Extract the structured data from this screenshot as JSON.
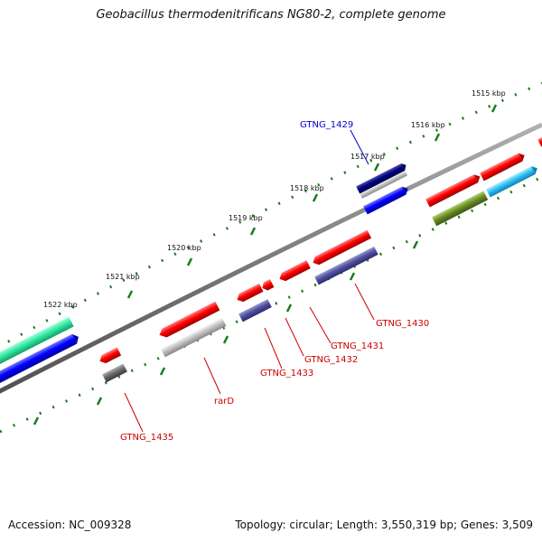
{
  "title": "Geobacillus thermodenitrificans NG80-2, complete genome",
  "footer": {
    "accession": "Accession: NC_009328",
    "summary": "Topology: circular; Length: 3,550,319 bp; Genes: 3,509"
  },
  "ruler": {
    "labels": [
      "1515 kbp",
      "1516 kbp",
      "1517 kbp",
      "1518 kbp",
      "1519 kbp",
      "1520 kbp",
      "1521 kbp",
      "1522 kbp"
    ]
  },
  "genes": [
    {
      "name": "GTNG_1429",
      "color": "#0000cc"
    },
    {
      "name": "GTNG_1430",
      "color": "#cc0000"
    },
    {
      "name": "GTNG_1431",
      "color": "#cc0000"
    },
    {
      "name": "GTNG_1432",
      "color": "#cc0000"
    },
    {
      "name": "GTNG_1433",
      "color": "#cc0000"
    },
    {
      "name": "rarD",
      "color": "#cc0000"
    },
    {
      "name": "GTNG_1435",
      "color": "#cc0000"
    }
  ],
  "colors": {
    "backbone": "#7a7a7a",
    "ticks": "#1a7a1a",
    "cds_red": "#e50000",
    "cds_blue": "#0000e0",
    "cds_navy": "#00006e",
    "cds_slate": "#4a4a9a",
    "cds_silver": "#b4b4b4",
    "cds_gray": "#666666",
    "cds_cyan": "#2ab7ee",
    "cds_olive": "#6b8e23",
    "cds_teal": "#2ee6a0"
  }
}
